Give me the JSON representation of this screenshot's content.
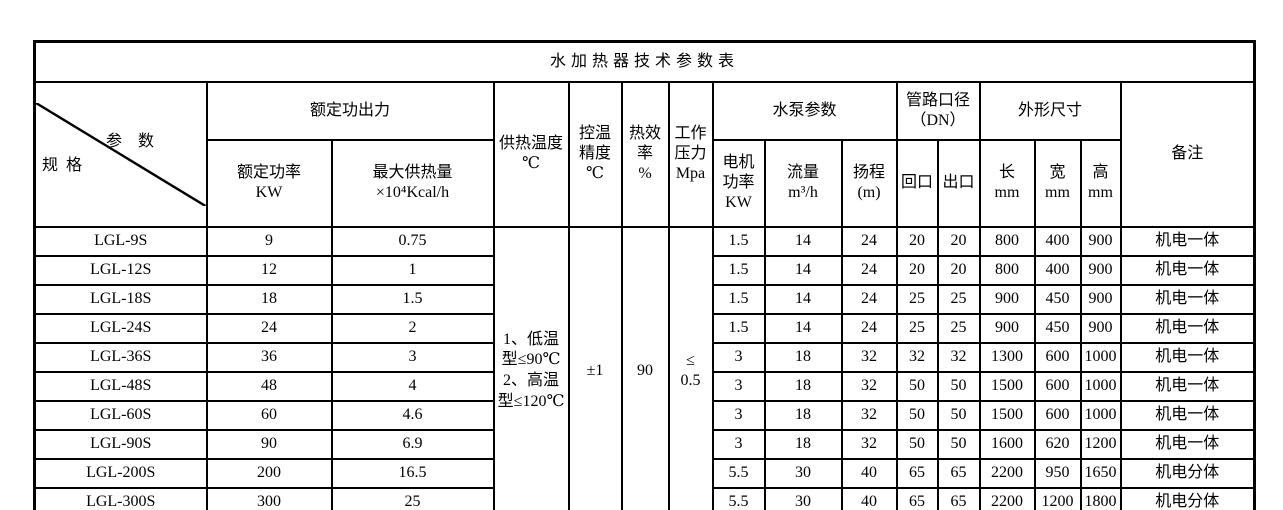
{
  "title": "水加热器技术参数表",
  "colors": {
    "border": "#000000",
    "text": "#000000",
    "background": "#ffffff"
  },
  "header": {
    "corner_top": "参　数",
    "corner_bottom": "规  格",
    "rated_output_group": "额定功出力",
    "rated_power": "额定功率\nKW",
    "max_heat": "最大供热量\n×10⁴Kcal/h",
    "supply_temp": "供热温度\n℃",
    "temp_precision": "控温\n精度\n℃",
    "thermal_eff": "热效\n率\n%",
    "work_pressure": "工作\n压力\nMpa",
    "pump_group": "水泵参数",
    "motor_power": "电机\n功率\nKW",
    "flow": "流量\nm³/h",
    "head": "扬程\n(m)",
    "pipe_group": "管路口径\n（DN）",
    "return_port": "回口",
    "outlet_port": "出口",
    "dims_group": "外形尺寸",
    "length": "长\nmm",
    "width": "宽\nmm",
    "height": "高\nmm",
    "remark": "备注"
  },
  "merged_values": {
    "supply_temp": "1、低温型≤90℃\n2、高温型≤120℃",
    "temp_precision": "±1",
    "thermal_eff": "90",
    "work_pressure": "≤\n0.5"
  },
  "rows": [
    {
      "model": "LGL-9S",
      "rated_power": "9",
      "max_heat": "0.75",
      "motor_power": "1.5",
      "flow": "14",
      "head": "24",
      "return_port": "20",
      "outlet_port": "20",
      "length": "800",
      "width": "400",
      "height": "900",
      "remark": "机电一体"
    },
    {
      "model": "LGL-12S",
      "rated_power": "12",
      "max_heat": "1",
      "motor_power": "1.5",
      "flow": "14",
      "head": "24",
      "return_port": "20",
      "outlet_port": "20",
      "length": "800",
      "width": "400",
      "height": "900",
      "remark": "机电一体"
    },
    {
      "model": "LGL-18S",
      "rated_power": "18",
      "max_heat": "1.5",
      "motor_power": "1.5",
      "flow": "14",
      "head": "24",
      "return_port": "25",
      "outlet_port": "25",
      "length": "900",
      "width": "450",
      "height": "900",
      "remark": "机电一体"
    },
    {
      "model": "LGL-24S",
      "rated_power": "24",
      "max_heat": "2",
      "motor_power": "1.5",
      "flow": "14",
      "head": "24",
      "return_port": "25",
      "outlet_port": "25",
      "length": "900",
      "width": "450",
      "height": "900",
      "remark": "机电一体"
    },
    {
      "model": "LGL-36S",
      "rated_power": "36",
      "max_heat": "3",
      "motor_power": "3",
      "flow": "18",
      "head": "32",
      "return_port": "32",
      "outlet_port": "32",
      "length": "1300",
      "width": "600",
      "height": "1000",
      "remark": "机电一体"
    },
    {
      "model": "LGL-48S",
      "rated_power": "48",
      "max_heat": "4",
      "motor_power": "3",
      "flow": "18",
      "head": "32",
      "return_port": "50",
      "outlet_port": "50",
      "length": "1500",
      "width": "600",
      "height": "1000",
      "remark": "机电一体"
    },
    {
      "model": "LGL-60S",
      "rated_power": "60",
      "max_heat": "4.6",
      "motor_power": "3",
      "flow": "18",
      "head": "32",
      "return_port": "50",
      "outlet_port": "50",
      "length": "1500",
      "width": "600",
      "height": "1000",
      "remark": "机电一体"
    },
    {
      "model": "LGL-90S",
      "rated_power": "90",
      "max_heat": "6.9",
      "motor_power": "3",
      "flow": "18",
      "head": "32",
      "return_port": "50",
      "outlet_port": "50",
      "length": "1600",
      "width": "620",
      "height": "1200",
      "remark": "机电一体"
    },
    {
      "model": "LGL-200S",
      "rated_power": "200",
      "max_heat": "16.5",
      "motor_power": "5.5",
      "flow": "30",
      "head": "40",
      "return_port": "65",
      "outlet_port": "65",
      "length": "2200",
      "width": "950",
      "height": "1650",
      "remark": "机电分体"
    },
    {
      "model": "LGL-300S",
      "rated_power": "300",
      "max_heat": "25",
      "motor_power": "5.5",
      "flow": "30",
      "head": "40",
      "return_port": "65",
      "outlet_port": "65",
      "length": "2200",
      "width": "1200",
      "height": "1800",
      "remark": "机电分体"
    }
  ]
}
